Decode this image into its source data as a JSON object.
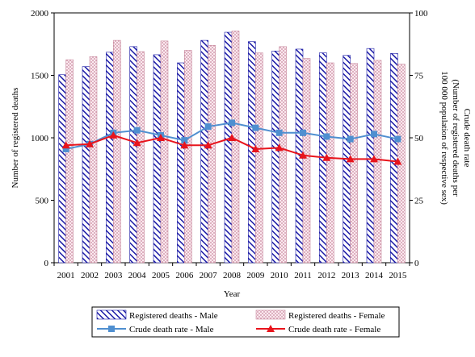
{
  "chart_data": {
    "type": "bar",
    "categories": [
      "2001",
      "2002",
      "2003",
      "2004",
      "2005",
      "2006",
      "2007",
      "2008",
      "2009",
      "2010",
      "2011",
      "2012",
      "2013",
      "2014",
      "2015"
    ],
    "xlabel": "Year",
    "ylabel": "Number of registered deaths",
    "ylabel_right": [
      "Crude death rate",
      "(Number of registered deaths per",
      "100 000 population of respective sex)"
    ],
    "ylim": [
      0,
      2000
    ],
    "yticks": [
      0,
      500,
      1000,
      1500,
      2000
    ],
    "ylim_right": [
      0,
      100
    ],
    "yticks_right": [
      0,
      25,
      50,
      75,
      100
    ],
    "grid": false,
    "legend_position": "bottom",
    "series": [
      {
        "name": "Registered deaths - Male",
        "kind": "bar",
        "axis": "left",
        "color": "#1a1aa6",
        "pattern": "diagonal-stripes",
        "values": [
          1505,
          1570,
          1685,
          1730,
          1665,
          1600,
          1780,
          1845,
          1770,
          1695,
          1710,
          1680,
          1660,
          1715,
          1675
        ]
      },
      {
        "name": "Registered deaths - Female",
        "kind": "bar",
        "axis": "left",
        "color": "#d6a6b6",
        "pattern": "dots",
        "values": [
          1625,
          1650,
          1780,
          1690,
          1775,
          1700,
          1740,
          1855,
          1680,
          1730,
          1635,
          1600,
          1595,
          1620,
          1590
        ]
      },
      {
        "name": "Crude death rate - Male",
        "kind": "line",
        "axis": "right",
        "color": "#4f8fd0",
        "marker": "square",
        "values": [
          45.5,
          47.5,
          52,
          53,
          51,
          49,
          54.5,
          56,
          54,
          52,
          52,
          50.5,
          49.5,
          51.5,
          49.5
        ]
      },
      {
        "name": "Crude death rate - Female",
        "kind": "line",
        "axis": "right",
        "color": "#e8141c",
        "marker": "triangle",
        "values": [
          47,
          47.5,
          51,
          48,
          50,
          47,
          47,
          50,
          45.5,
          46,
          43,
          42,
          41.5,
          41.5,
          40.5
        ]
      }
    ]
  }
}
